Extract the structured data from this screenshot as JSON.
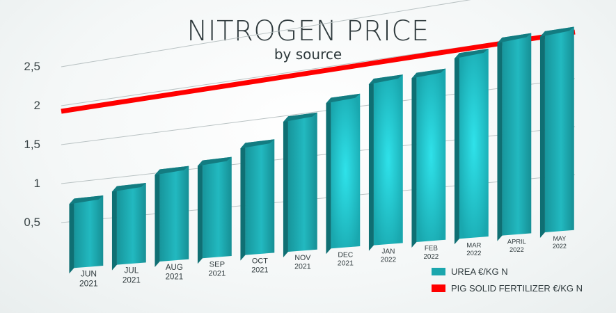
{
  "chart_data": {
    "type": "bar",
    "title": "NITROGEN PRICE",
    "subtitle": "by source",
    "categories": [
      "JUN 2021",
      "JUL 2021",
      "AUG 2021",
      "SEP 2021",
      "OCT 2021",
      "NOV 2021",
      "DEC 2021",
      "JAN 2022",
      "FEB 2022",
      "MAR 2022",
      "APRIL 2022",
      "MAY 2022"
    ],
    "series": [
      {
        "name": "UREA  €/KG N",
        "kind": "bar",
        "color": "#1aa6ad",
        "values": [
          0.8,
          0.9,
          1.05,
          1.1,
          1.25,
          1.5,
          1.65,
          1.8,
          1.8,
          1.95,
          2.05,
          2.05
        ]
      },
      {
        "name": "PIG SOLID FERTILIZER  €/KG N",
        "kind": "line",
        "color": "#ff0000",
        "values": [
          2.0,
          2.0,
          2.0,
          2.0,
          2.0,
          2.0,
          2.0,
          2.0,
          2.0,
          2.0,
          2.0,
          2.0
        ]
      }
    ],
    "yticks": [
      "0,5",
      "1",
      "1,5",
      "2",
      "2,5"
    ],
    "ylim": [
      0,
      2.5
    ],
    "grid": true,
    "legend_position": "bottom-right"
  }
}
